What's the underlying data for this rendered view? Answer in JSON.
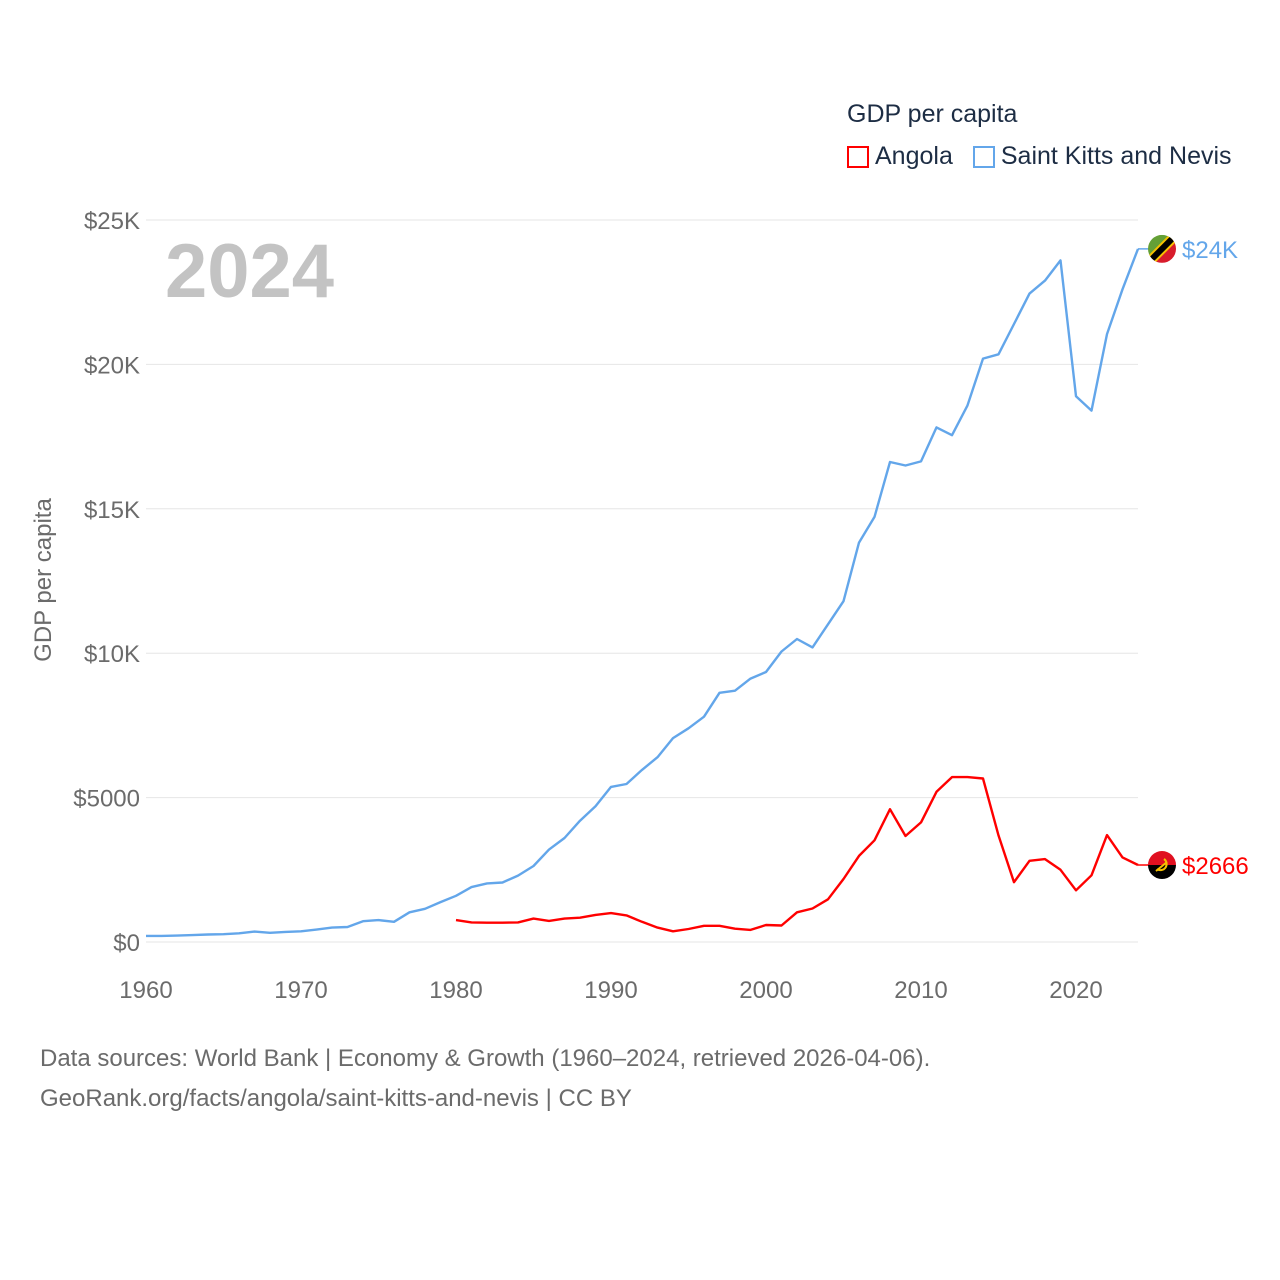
{
  "legend": {
    "title": "GDP per capita",
    "items": [
      {
        "label": "Angola",
        "color": "#ff0000"
      },
      {
        "label": "Saint Kitts and Nevis",
        "color": "#63a6ea"
      }
    ]
  },
  "year_label": "2024",
  "footer": {
    "line1": "Data sources: World Bank | Economy & Growth (1960–2024, retrieved 2026-04-06).",
    "line2": "GeoRank.org/facts/angola/saint-kitts-and-nevis | CC BY"
  },
  "chart_data": {
    "type": "line",
    "title": "",
    "xlabel": "",
    "ylabel": "GDP per capita",
    "xlim": [
      1960,
      2024
    ],
    "ylim": [
      0,
      25000
    ],
    "grid": true,
    "legend_position": "top-right",
    "x_ticks": [
      1960,
      1970,
      1980,
      1990,
      2000,
      2010,
      2020
    ],
    "x_tick_labels": [
      "1960",
      "1970",
      "1980",
      "1990",
      "2000",
      "2010",
      "2020"
    ],
    "y_ticks": [
      0,
      5000,
      10000,
      15000,
      20000,
      25000
    ],
    "y_tick_labels": [
      "$0",
      "$5000",
      "$10K",
      "$15K",
      "$20K",
      "$25K"
    ],
    "series": [
      {
        "name": "Saint Kitts and Nevis",
        "color": "#63a6ea",
        "end_label": "$24K",
        "flag": "saint-kitts-and-nevis-flag",
        "start_year": 1960,
        "values": [
          210,
          210,
          220,
          240,
          260,
          270,
          300,
          360,
          320,
          350,
          370,
          430,
          500,
          520,
          720,
          760,
          700,
          1030,
          1150,
          1380,
          1600,
          1900,
          2030,
          2060,
          2300,
          2630,
          3200,
          3600,
          4200,
          4700,
          5370,
          5470,
          5960,
          6400,
          7060,
          7400,
          7800,
          8630,
          8700,
          9120,
          9350,
          10060,
          10490,
          10200,
          11000,
          11800,
          13830,
          14720,
          16620,
          16500,
          16640,
          17820,
          17550,
          18580,
          20200,
          20350,
          21400,
          22450,
          22900,
          23600,
          18900,
          18400,
          21050,
          22600,
          24000
        ]
      },
      {
        "name": "Angola",
        "color": "#ff0000",
        "end_label": "$2666",
        "flag": "angola-flag",
        "start_year": 1980,
        "values": [
          760,
          680,
          670,
          670,
          680,
          810,
          730,
          810,
          840,
          940,
          1000,
          920,
          700,
          500,
          370,
          450,
          560,
          560,
          460,
          420,
          590,
          570,
          1030,
          1160,
          1480,
          2180,
          2980,
          3520,
          4600,
          3670,
          4140,
          5200,
          5710,
          5710,
          5660,
          3690,
          2070,
          2810,
          2870,
          2500,
          1790,
          2310,
          3700,
          2930,
          2666
        ]
      }
    ]
  }
}
